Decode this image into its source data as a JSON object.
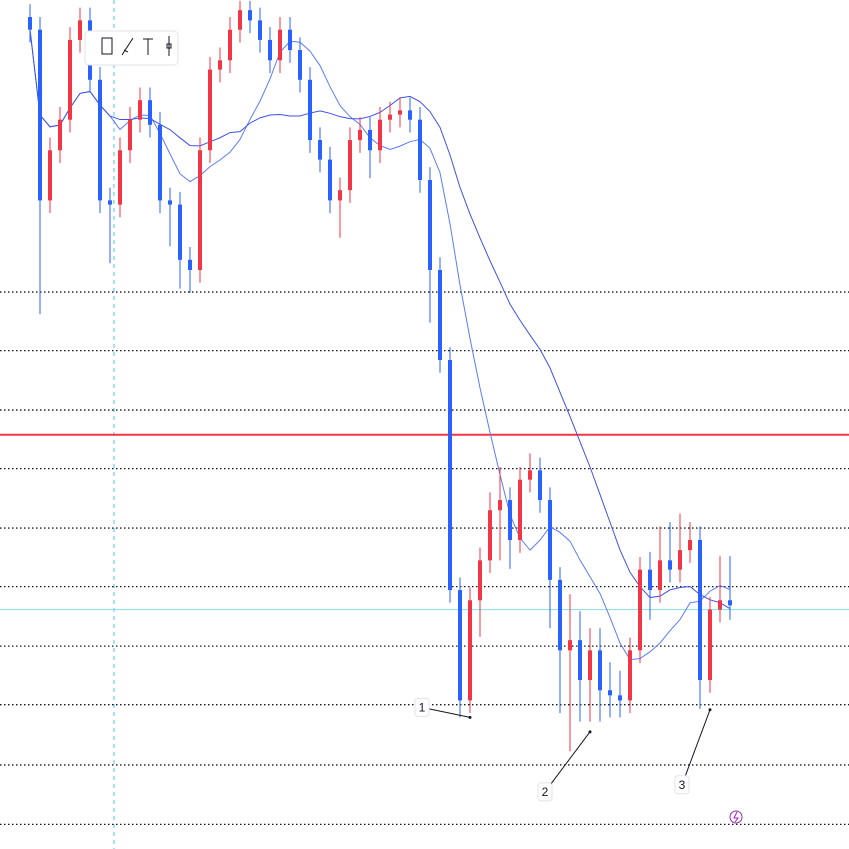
{
  "chart_data": {
    "type": "candlestick",
    "up_color": "#f23645",
    "down_color": "#2962ff",
    "ylim": [
      0,
      100
    ],
    "open": [
      98.0,
      96.5,
      76.4,
      82.3,
      85.9,
      95.3,
      97.6,
      90.6,
      76.4,
      75.9,
      82.3,
      85.9,
      88.2,
      85.3,
      76.4,
      75.9,
      69.4,
      68.2,
      82.3,
      91.8,
      92.9,
      96.5,
      98.8,
      97.6,
      95.3,
      92.9,
      96.5,
      94.1,
      90.6,
      83.5,
      81.2,
      76.4,
      77.6,
      83.5,
      84.7,
      82.3,
      85.9,
      86.5,
      87.0,
      85.9,
      78.8,
      68.2,
      57.6,
      30.5,
      17.5,
      29.3,
      34.0,
      39.9,
      41.1,
      36.4,
      43.5,
      44.6,
      41.1,
      31.7,
      23.4,
      24.6,
      19.9,
      23.4,
      18.7,
      18.1,
      17.5,
      23.4,
      32.9,
      30.5,
      34.0,
      32.9,
      35.2,
      36.4,
      19.9,
      28.2,
      29.3
    ],
    "high": [
      99.5,
      98.0,
      83.8,
      87.4,
      96.8,
      99.1,
      99.1,
      92.1,
      77.9,
      83.8,
      87.4,
      89.7,
      89.7,
      86.8,
      77.9,
      77.4,
      70.9,
      83.8,
      93.3,
      94.4,
      98.0,
      99.9,
      99.9,
      99.1,
      96.8,
      98.0,
      98.0,
      95.6,
      92.1,
      85.0,
      82.7,
      79.1,
      85.0,
      86.2,
      86.2,
      87.4,
      88.0,
      88.5,
      88.5,
      87.4,
      80.3,
      69.7,
      59.1,
      32.0,
      30.8,
      35.5,
      42.0,
      45.0,
      42.6,
      45.0,
      46.6,
      46.1,
      42.6,
      33.2,
      30.0,
      28.0,
      26.0,
      26.0,
      22.0,
      21.0,
      24.9,
      34.4,
      35.0,
      38.0,
      38.5,
      39.5,
      38.5,
      38.0,
      29.7,
      34.5,
      34.5
    ],
    "low": [
      95.0,
      63.0,
      74.9,
      80.8,
      84.4,
      93.8,
      89.1,
      74.9,
      69.0,
      74.4,
      80.8,
      84.4,
      83.8,
      74.9,
      71.0,
      66.0,
      65.5,
      66.7,
      80.8,
      90.3,
      91.4,
      95.0,
      96.1,
      93.8,
      91.4,
      91.4,
      92.6,
      89.1,
      82.0,
      79.7,
      74.9,
      72.0,
      76.1,
      82.0,
      79.0,
      80.8,
      84.4,
      85.0,
      84.4,
      77.3,
      62.0,
      56.1,
      29.0,
      15.5,
      16.0,
      25.0,
      32.5,
      34.0,
      33.0,
      34.9,
      42.0,
      39.6,
      26.0,
      16.0,
      11.5,
      15.0,
      15.0,
      15.0,
      15.5,
      15.5,
      16.0,
      21.9,
      27.0,
      29.0,
      31.4,
      31.4,
      33.7,
      16.5,
      18.4,
      26.7,
      27.0
    ],
    "close": [
      96.5,
      76.4,
      82.3,
      85.9,
      95.3,
      97.6,
      90.6,
      76.4,
      75.9,
      82.3,
      85.9,
      88.2,
      85.3,
      76.4,
      75.9,
      69.4,
      68.2,
      82.3,
      91.8,
      92.9,
      96.5,
      98.8,
      97.6,
      95.3,
      92.9,
      96.5,
      94.1,
      90.6,
      83.5,
      81.2,
      76.4,
      77.6,
      83.5,
      84.7,
      82.3,
      85.9,
      86.5,
      87.0,
      85.9,
      78.8,
      68.2,
      57.6,
      30.5,
      17.5,
      29.3,
      34.0,
      39.9,
      41.1,
      36.4,
      43.5,
      44.6,
      41.1,
      31.7,
      23.4,
      24.6,
      19.9,
      23.4,
      18.7,
      18.1,
      17.5,
      23.4,
      32.9,
      30.5,
      34.0,
      32.9,
      35.2,
      36.4,
      19.9,
      28.2,
      29.3,
      28.7
    ],
    "levels": [
      65.6,
      58.7,
      51.7,
      44.8,
      37.8,
      30.9,
      23.9,
      17.0,
      9.9,
      2.9
    ],
    "alert_level": 48.8,
    "alert_color": "#f23645",
    "price_line": 28.2,
    "annotations": [
      {
        "label": "1",
        "point": [
          44,
          15.5
        ]
      },
      {
        "label": "2",
        "point": [
          56,
          13.8
        ]
      },
      {
        "label": "3",
        "point": [
          68,
          16.4
        ]
      }
    ]
  }
}
